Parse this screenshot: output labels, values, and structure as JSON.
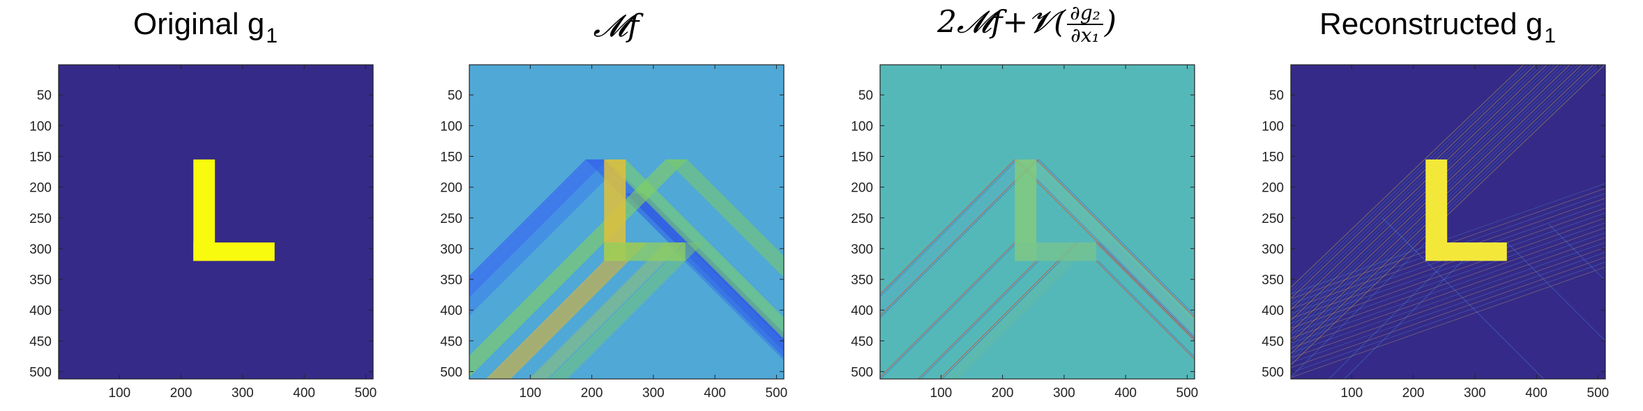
{
  "chart_data": [
    {
      "type": "heatmap",
      "title": "Original g",
      "title_sub": "1",
      "xlim": [
        1,
        512
      ],
      "ylim": [
        512,
        1
      ],
      "xticks": [
        100,
        200,
        300,
        400,
        500
      ],
      "yticks": [
        50,
        100,
        150,
        200,
        250,
        300,
        350,
        400,
        450,
        500
      ],
      "colormap": "parula",
      "background_color": "#352a87",
      "shape": {
        "name": "L",
        "color": "#f9fb0e",
        "vertical_bar": {
          "x": [
            220,
            255
          ],
          "y": [
            155,
            320
          ]
        },
        "horizontal_bar": {
          "x": [
            220,
            352
          ],
          "y": [
            290,
            320
          ]
        }
      }
    },
    {
      "type": "heatmap",
      "title": "𝓜f",
      "xlim": [
        1,
        512
      ],
      "ylim": [
        512,
        1
      ],
      "xticks": [
        100,
        200,
        300,
        400,
        500
      ],
      "yticks": [
        50,
        100,
        150,
        200,
        250,
        300,
        350,
        400,
        450,
        500
      ],
      "colormap": "parula",
      "background_color": "#4fa8d6"
    },
    {
      "type": "heatmap",
      "title": "2𝓜f+𝓥(",
      "title_num": "∂g₂",
      "title_den": "∂x₁",
      "title_end": ")",
      "xlim": [
        1,
        512
      ],
      "ylim": [
        512,
        1
      ],
      "xticks": [
        100,
        200,
        300,
        400,
        500
      ],
      "yticks": [
        50,
        100,
        150,
        200,
        250,
        300,
        350,
        400,
        450,
        500
      ],
      "colormap": "parula",
      "background_color": "#55b8b8"
    },
    {
      "type": "heatmap",
      "title": "Reconstructed g",
      "title_sub": "1",
      "xlim": [
        1,
        512
      ],
      "ylim": [
        512,
        1
      ],
      "xticks": [
        100,
        200,
        300,
        400,
        500
      ],
      "yticks": [
        50,
        100,
        150,
        200,
        250,
        300,
        350,
        400,
        450,
        500
      ],
      "colormap": "parula",
      "background_color": "#352a87",
      "shape": {
        "name": "L",
        "color": "#f3e83a"
      }
    }
  ]
}
